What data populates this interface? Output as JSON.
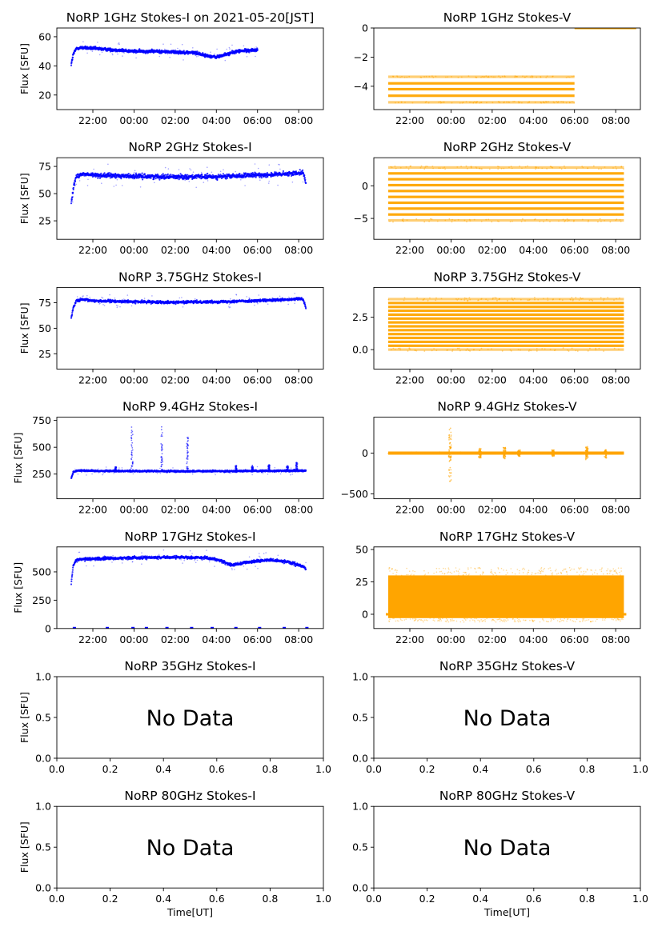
{
  "figure": {
    "x_label": "Time[UT]",
    "y_label": "Flux [SFU]",
    "no_data_text": "No Data",
    "colors": {
      "stokes_i": "#0000ff",
      "stokes_v": "#ffa500",
      "axes": "#000000"
    }
  },
  "chart_data": [
    {
      "id": "i1",
      "type": "scatter",
      "title": "NoRP 1GHz Stokes-I on 2021-05-20[JST]",
      "ylabel": "Flux [SFU]",
      "series_color": "#0000ff",
      "x_time_hours": true,
      "xlim": [
        20.25,
        33.2
      ],
      "ylim": [
        10,
        66
      ],
      "xticks": [
        22,
        24,
        26,
        28,
        30,
        32
      ],
      "xtick_labels": [
        "22:00",
        "00:00",
        "02:00",
        "04:00",
        "06:00",
        "08:00"
      ],
      "yticks": [
        20,
        40,
        60
      ],
      "ytick_labels": [
        "20",
        "40",
        "60"
      ],
      "data": {
        "x": [
          20.95,
          21.05,
          21.2,
          21.5,
          22.0,
          23.0,
          24.0,
          25.0,
          26.0,
          27.0,
          27.5,
          28.0,
          28.5,
          29.0,
          30.0
        ],
        "y": [
          41,
          48,
          52,
          52.5,
          52,
          51,
          50,
          50,
          49.5,
          49,
          47,
          46,
          48,
          50,
          51
        ],
        "spread": 1.8,
        "x_end": 30.0
      }
    },
    {
      "id": "v1",
      "type": "scatter",
      "title": "NoRP 1GHz Stokes-V",
      "series_color": "#ffa500",
      "x_time_hours": true,
      "xlim": [
        20.25,
        33.2
      ],
      "ylim": [
        -5.6,
        0
      ],
      "xticks": [
        22,
        24,
        26,
        28,
        30,
        32
      ],
      "xtick_labels": [
        "22:00",
        "00:00",
        "02:00",
        "04:00",
        "06:00",
        "08:00"
      ],
      "yticks": [
        -4,
        -2,
        0
      ],
      "ytick_labels": [
        "−4",
        "−2",
        "0"
      ],
      "data": {
        "levels": [
          -3.35,
          -3.8,
          -4.2,
          -4.65,
          -5.1
        ],
        "x_start": 20.95,
        "x_end": 30.0,
        "upper_line": {
          "y": 0,
          "x_start": 30.0,
          "x_end": 33.0
        }
      }
    },
    {
      "id": "i2",
      "type": "scatter",
      "title": "NoRP 2GHz Stokes-I",
      "ylabel": "Flux [SFU]",
      "series_color": "#0000ff",
      "x_time_hours": true,
      "xlim": [
        20.25,
        33.2
      ],
      "ylim": [
        8,
        83
      ],
      "xticks": [
        22,
        24,
        26,
        28,
        30,
        32
      ],
      "xtick_labels": [
        "22:00",
        "00:00",
        "02:00",
        "04:00",
        "06:00",
        "08:00"
      ],
      "yticks": [
        25,
        50,
        75
      ],
      "ytick_labels": [
        "25",
        "50",
        "75"
      ],
      "data": {
        "x": [
          20.95,
          21.05,
          21.2,
          21.5,
          22,
          24,
          26,
          28,
          30,
          31.5,
          32.2,
          32.35
        ],
        "y": [
          42,
          55,
          66,
          68,
          67,
          66,
          65.5,
          65.5,
          67,
          68,
          70,
          60
        ],
        "spread": 3.5,
        "x_end": 32.35
      }
    },
    {
      "id": "v2",
      "type": "scatter",
      "title": "NoRP 2GHz Stokes-V",
      "series_color": "#ffa500",
      "x_time_hours": true,
      "xlim": [
        20.25,
        33.2
      ],
      "ylim": [
        -8.2,
        4.3
      ],
      "xticks": [
        22,
        24,
        26,
        28,
        30,
        32
      ],
      "xtick_labels": [
        "22:00",
        "00:00",
        "02:00",
        "04:00",
        "06:00",
        "08:00"
      ],
      "yticks": [
        -5,
        0
      ],
      "ytick_labels": [
        "−5",
        "0"
      ],
      "data": {
        "levels": [
          2.8,
          1.9,
          1.0,
          0.1,
          -0.8,
          -1.7,
          -2.6,
          -3.5,
          -4.4,
          -5.3
        ],
        "x_start": 20.95,
        "x_end": 32.4
      }
    },
    {
      "id": "i3",
      "type": "scatter",
      "title": "NoRP 3.75GHz Stokes-I",
      "ylabel": "Flux [SFU]",
      "series_color": "#0000ff",
      "x_time_hours": true,
      "xlim": [
        20.25,
        33.2
      ],
      "ylim": [
        10,
        90
      ],
      "xticks": [
        22,
        24,
        26,
        28,
        30,
        32
      ],
      "xtick_labels": [
        "22:00",
        "00:00",
        "02:00",
        "04:00",
        "06:00",
        "08:00"
      ],
      "yticks": [
        25,
        50,
        75
      ],
      "ytick_labels": [
        "25",
        "50",
        "75"
      ],
      "data": {
        "x": [
          20.95,
          21.05,
          21.2,
          21.5,
          22,
          24,
          26,
          28,
          30,
          31.5,
          32.2,
          32.35
        ],
        "y": [
          60,
          70,
          77,
          78,
          77,
          76,
          75.5,
          76,
          77,
          78,
          79,
          70
        ],
        "spread": 2.2,
        "x_end": 32.35
      }
    },
    {
      "id": "v3",
      "type": "scatter",
      "title": "NoRP 3.75GHz Stokes-V",
      "series_color": "#ffa500",
      "x_time_hours": true,
      "xlim": [
        20.25,
        33.2
      ],
      "ylim": [
        -1.5,
        4.8
      ],
      "xticks": [
        22,
        24,
        26,
        28,
        30,
        32
      ],
      "xtick_labels": [
        "22:00",
        "00:00",
        "02:00",
        "04:00",
        "06:00",
        "08:00"
      ],
      "yticks": [
        0,
        2.5
      ],
      "ytick_labels": [
        "0.0",
        "2.5"
      ],
      "data": {
        "levels": [
          3.9,
          3.6,
          3.3,
          3.0,
          2.7,
          2.4,
          2.1,
          1.8,
          1.5,
          1.2,
          0.9,
          0.6,
          0.3,
          0.0
        ],
        "x_start": 20.95,
        "x_end": 32.4
      }
    },
    {
      "id": "i4",
      "type": "scatter",
      "title": "NoRP 9.4GHz Stokes-I",
      "ylabel": "Flux [SFU]",
      "series_color": "#0000ff",
      "x_time_hours": true,
      "xlim": [
        20.25,
        33.2
      ],
      "ylim": [
        20,
        780
      ],
      "xticks": [
        22,
        24,
        26,
        28,
        30,
        32
      ],
      "xtick_labels": [
        "22:00",
        "00:00",
        "02:00",
        "04:00",
        "06:00",
        "08:00"
      ],
      "yticks": [
        250,
        500,
        750
      ],
      "ytick_labels": [
        "250",
        "500",
        "750"
      ],
      "data": {
        "x": [
          20.95,
          21.05,
          21.3,
          22,
          24,
          26,
          28,
          30,
          32.35
        ],
        "y": [
          210,
          270,
          285,
          280,
          278,
          276,
          277,
          279,
          282
        ],
        "spread": 14,
        "x_end": 32.35,
        "spikes": [
          {
            "x": 23.1,
            "y": 320
          },
          {
            "x": 23.9,
            "y": 690
          },
          {
            "x": 25.35,
            "y": 700
          },
          {
            "x": 26.6,
            "y": 600
          },
          {
            "x": 28.95,
            "y": 330
          },
          {
            "x": 29.75,
            "y": 330
          },
          {
            "x": 30.55,
            "y": 340
          },
          {
            "x": 31.45,
            "y": 330
          },
          {
            "x": 31.9,
            "y": 360
          }
        ]
      }
    },
    {
      "id": "v4",
      "type": "scatter",
      "title": "NoRP 9.4GHz Stokes-V",
      "series_color": "#ffa500",
      "x_time_hours": true,
      "xlim": [
        20.25,
        33.2
      ],
      "ylim": [
        -560,
        440
      ],
      "xticks": [
        22,
        24,
        26,
        28,
        30,
        32
      ],
      "xtick_labels": [
        "22:00",
        "00:00",
        "02:00",
        "04:00",
        "06:00",
        "08:00"
      ],
      "yticks": [
        -500,
        0
      ],
      "ytick_labels": [
        "−500",
        "0"
      ],
      "data": {
        "x_start": 20.95,
        "x_end": 32.4,
        "spread": 8,
        "spikes": [
          {
            "x": 23.95,
            "y": 310,
            "y_min": -360
          },
          {
            "x": 25.4,
            "y": 60,
            "y_min": -60
          },
          {
            "x": 26.6,
            "y": 70,
            "y_min": -70
          },
          {
            "x": 27.3,
            "y": 40,
            "y_min": -40
          },
          {
            "x": 28.95,
            "y": 40,
            "y_min": -40
          },
          {
            "x": 30.6,
            "y": 80,
            "y_min": -90
          },
          {
            "x": 31.5,
            "y": 40,
            "y_min": -60
          }
        ]
      }
    },
    {
      "id": "i5",
      "type": "scatter",
      "title": "NoRP 17GHz Stokes-I",
      "ylabel": "Flux [SFU]",
      "series_color": "#0000ff",
      "x_time_hours": true,
      "xlim": [
        20.25,
        33.2
      ],
      "ylim": [
        0,
        720
      ],
      "xticks": [
        22,
        24,
        26,
        28,
        30,
        32
      ],
      "xtick_labels": [
        "22:00",
        "00:00",
        "02:00",
        "04:00",
        "06:00",
        "08:00"
      ],
      "yticks": [
        0,
        250,
        500
      ],
      "ytick_labels": [
        "0",
        "250",
        "500"
      ],
      "data": {
        "x": [
          20.95,
          21.05,
          21.2,
          21.6,
          22,
          24,
          26,
          27.5,
          28.0,
          28.8,
          29.5,
          30.5,
          31.5,
          32.3,
          32.35
        ],
        "y": [
          400,
          560,
          605,
          612,
          615,
          625,
          630,
          625,
          610,
          560,
          585,
          605,
          590,
          540,
          520
        ],
        "spread": 22,
        "x_end": 32.35,
        "baseline_points": [
          21.1,
          22.7,
          23.95,
          24.6,
          25.6,
          26.8,
          27.8,
          28.95,
          30.1,
          31.3,
          32.4
        ]
      }
    },
    {
      "id": "v5",
      "type": "scatter",
      "title": "NoRP 17GHz Stokes-V",
      "series_color": "#ffa500",
      "x_time_hours": true,
      "xlim": [
        20.25,
        33.2
      ],
      "ylim": [
        -11,
        52
      ],
      "xticks": [
        22,
        24,
        26,
        28,
        30,
        32
      ],
      "xtick_labels": [
        "22:00",
        "00:00",
        "02:00",
        "04:00",
        "06:00",
        "08:00"
      ],
      "yticks": [
        0,
        25,
        50
      ],
      "ytick_labels": [
        "0",
        "25",
        "50"
      ],
      "data": {
        "x_start": 20.95,
        "x_end": 32.4,
        "y_min": -3,
        "y_max": 30,
        "outlier_min": -6,
        "outlier_max": 36
      }
    },
    {
      "id": "i6",
      "type": "scatter",
      "title": "NoRP 35GHz Stokes-I",
      "ylabel": "Flux [SFU]",
      "no_data": true,
      "xlim": [
        0,
        1
      ],
      "ylim": [
        0,
        1
      ],
      "xticks": [
        0,
        0.2,
        0.4,
        0.6,
        0.8,
        1.0
      ],
      "xtick_labels": [
        "0.0",
        "0.2",
        "0.4",
        "0.6",
        "0.8",
        "1.0"
      ],
      "yticks": [
        0,
        0.5,
        1.0
      ],
      "ytick_labels": [
        "0.0",
        "0.5",
        "1.0"
      ]
    },
    {
      "id": "v6",
      "type": "scatter",
      "title": "NoRP 35GHz Stokes-V",
      "no_data": true,
      "xlim": [
        0,
        1
      ],
      "ylim": [
        0,
        1
      ],
      "xticks": [
        0,
        0.2,
        0.4,
        0.6,
        0.8,
        1.0
      ],
      "xtick_labels": [
        "0.0",
        "0.2",
        "0.4",
        "0.6",
        "0.8",
        "1.0"
      ],
      "yticks": [
        0,
        0.5,
        1.0
      ],
      "ytick_labels": [
        "0.0",
        "0.5",
        "1.0"
      ]
    },
    {
      "id": "i7",
      "type": "scatter",
      "title": "NoRP 80GHz Stokes-I",
      "ylabel": "Flux [SFU]",
      "xlabel": "Time[UT]",
      "no_data": true,
      "xlim": [
        0,
        1
      ],
      "ylim": [
        0,
        1
      ],
      "xticks": [
        0,
        0.2,
        0.4,
        0.6,
        0.8,
        1.0
      ],
      "xtick_labels": [
        "0.0",
        "0.2",
        "0.4",
        "0.6",
        "0.8",
        "1.0"
      ],
      "yticks": [
        0,
        0.5,
        1.0
      ],
      "ytick_labels": [
        "0.0",
        "0.5",
        "1.0"
      ]
    },
    {
      "id": "v7",
      "type": "scatter",
      "title": "NoRP 80GHz Stokes-V",
      "xlabel": "Time[UT]",
      "no_data": true,
      "xlim": [
        0,
        1
      ],
      "ylim": [
        0,
        1
      ],
      "xticks": [
        0,
        0.2,
        0.4,
        0.6,
        0.8,
        1.0
      ],
      "xtick_labels": [
        "0.0",
        "0.2",
        "0.4",
        "0.6",
        "0.8",
        "1.0"
      ],
      "yticks": [
        0,
        0.5,
        1.0
      ],
      "ytick_labels": [
        "0.0",
        "0.5",
        "1.0"
      ]
    }
  ]
}
